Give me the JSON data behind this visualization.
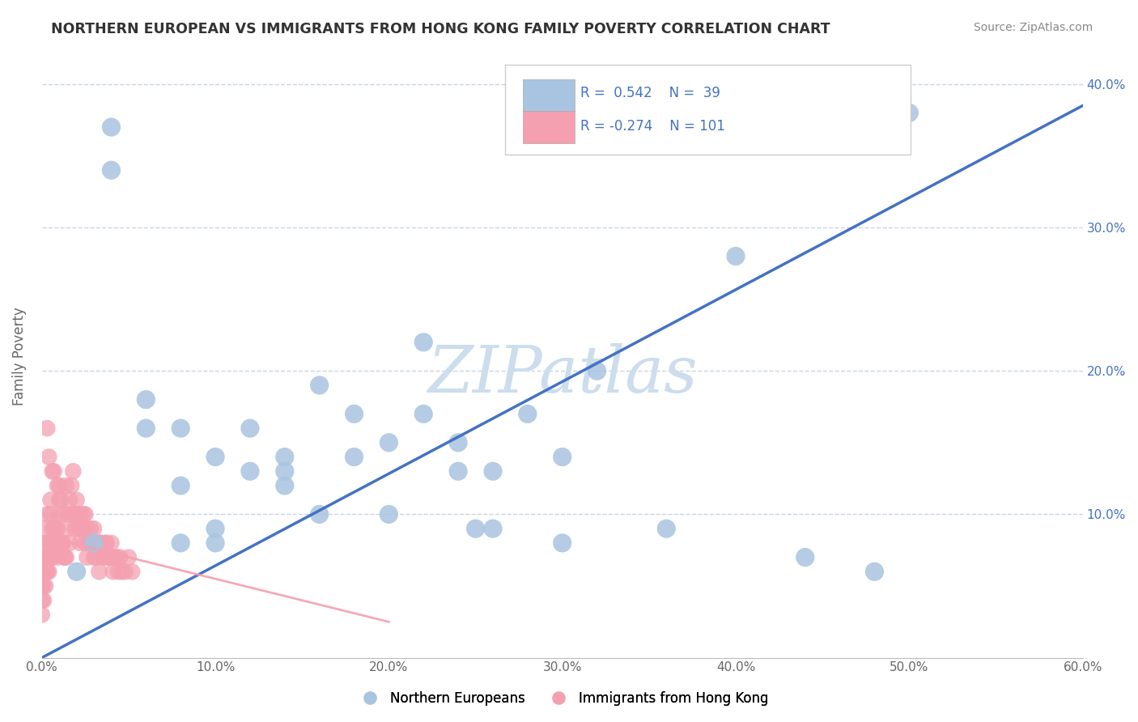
{
  "title": "NORTHERN EUROPEAN VS IMMIGRANTS FROM HONG KONG FAMILY POVERTY CORRELATION CHART",
  "source": "Source: ZipAtlas.com",
  "ylabel": "Family Poverty",
  "xlim": [
    0.0,
    0.6
  ],
  "ylim": [
    0.0,
    0.42
  ],
  "xticks": [
    0.0,
    0.1,
    0.2,
    0.3,
    0.4,
    0.5,
    0.6
  ],
  "xticklabels": [
    "0.0%",
    "10.0%",
    "20.0%",
    "30.0%",
    "40.0%",
    "50.0%",
    "60.0%"
  ],
  "yticks": [
    0.0,
    0.1,
    0.2,
    0.3,
    0.4
  ],
  "yticklabels_right": [
    "",
    "10.0%",
    "20.0%",
    "30.0%",
    "40.0%"
  ],
  "r_blue": 0.542,
  "n_blue": 39,
  "r_pink": -0.274,
  "n_pink": 101,
  "blue_color": "#a8c4e0",
  "pink_color": "#f4a0b0",
  "blue_line_color": "#4472c4",
  "pink_line_color": "#f4a0b0",
  "watermark": "ZIPatlas",
  "watermark_color": "#ccdded",
  "background_color": "#ffffff",
  "grid_color": "#c8d4e8",
  "blue_scatter_x": [
    0.28,
    0.32,
    0.18,
    0.22,
    0.14,
    0.16,
    0.06,
    0.1,
    0.04,
    0.08,
    0.12,
    0.2,
    0.24,
    0.26,
    0.3,
    0.08,
    0.12,
    0.14,
    0.16,
    0.18,
    0.2,
    0.22,
    0.24,
    0.26,
    0.5,
    0.4,
    0.1,
    0.06,
    0.04,
    0.02,
    0.03,
    0.36,
    0.3,
    0.25,
    0.48,
    0.44,
    0.1,
    0.08,
    0.14
  ],
  "blue_scatter_y": [
    0.17,
    0.2,
    0.17,
    0.22,
    0.14,
    0.19,
    0.18,
    0.14,
    0.37,
    0.16,
    0.16,
    0.1,
    0.15,
    0.13,
    0.14,
    0.12,
    0.13,
    0.12,
    0.1,
    0.14,
    0.15,
    0.17,
    0.13,
    0.09,
    0.38,
    0.28,
    0.09,
    0.16,
    0.34,
    0.06,
    0.08,
    0.09,
    0.08,
    0.09,
    0.06,
    0.07,
    0.08,
    0.08,
    0.13
  ],
  "pink_scatter_x": [
    0.002,
    0.003,
    0.005,
    0.005,
    0.007,
    0.008,
    0.01,
    0.01,
    0.01,
    0.012,
    0.012,
    0.013,
    0.014,
    0.015,
    0.015,
    0.016,
    0.017,
    0.018,
    0.018,
    0.019,
    0.02,
    0.02,
    0.021,
    0.022,
    0.022,
    0.023,
    0.024,
    0.025,
    0.025,
    0.026,
    0.027,
    0.028,
    0.029,
    0.03,
    0.03,
    0.031,
    0.032,
    0.033,
    0.034,
    0.035,
    0.036,
    0.037,
    0.038,
    0.039,
    0.04,
    0.041,
    0.042,
    0.043,
    0.044,
    0.045,
    0.046,
    0.048,
    0.05,
    0.052,
    0.003,
    0.004,
    0.006,
    0.009,
    0.011,
    0.016,
    0.019,
    0.021,
    0.023,
    0.026,
    0.029,
    0.031,
    0.034,
    0.037,
    0.039,
    0.041,
    0.001,
    0.002,
    0.003,
    0.004,
    0.005,
    0.006,
    0.007,
    0.008,
    0.009,
    0.01,
    0.011,
    0.012,
    0.013,
    0.014,
    0.0,
    0.001,
    0.002,
    0.003,
    0.004,
    0.005,
    0.006,
    0.007,
    0.008,
    0.009,
    0.0,
    0.001,
    0.002,
    0.003,
    0.004,
    0.0,
    0.001
  ],
  "pink_scatter_y": [
    0.09,
    0.1,
    0.1,
    0.11,
    0.13,
    0.09,
    0.1,
    0.11,
    0.12,
    0.08,
    0.1,
    0.07,
    0.12,
    0.09,
    0.1,
    0.08,
    0.12,
    0.1,
    0.13,
    0.09,
    0.1,
    0.11,
    0.09,
    0.08,
    0.1,
    0.09,
    0.1,
    0.08,
    0.1,
    0.07,
    0.08,
    0.09,
    0.08,
    0.07,
    0.09,
    0.07,
    0.08,
    0.06,
    0.08,
    0.07,
    0.07,
    0.08,
    0.07,
    0.07,
    0.08,
    0.06,
    0.07,
    0.07,
    0.06,
    0.07,
    0.06,
    0.06,
    0.07,
    0.06,
    0.16,
    0.14,
    0.13,
    0.12,
    0.11,
    0.11,
    0.1,
    0.1,
    0.09,
    0.09,
    0.08,
    0.08,
    0.08,
    0.08,
    0.07,
    0.07,
    0.07,
    0.07,
    0.08,
    0.08,
    0.08,
    0.09,
    0.09,
    0.09,
    0.09,
    0.08,
    0.08,
    0.08,
    0.07,
    0.07,
    0.05,
    0.06,
    0.06,
    0.06,
    0.07,
    0.07,
    0.07,
    0.08,
    0.08,
    0.07,
    0.04,
    0.05,
    0.05,
    0.06,
    0.06,
    0.03,
    0.04
  ],
  "blue_line_x": [
    0.0,
    0.6
  ],
  "blue_line_y": [
    0.0,
    0.385
  ],
  "pink_line_x": [
    0.0,
    0.2
  ],
  "pink_line_y": [
    0.085,
    0.025
  ]
}
